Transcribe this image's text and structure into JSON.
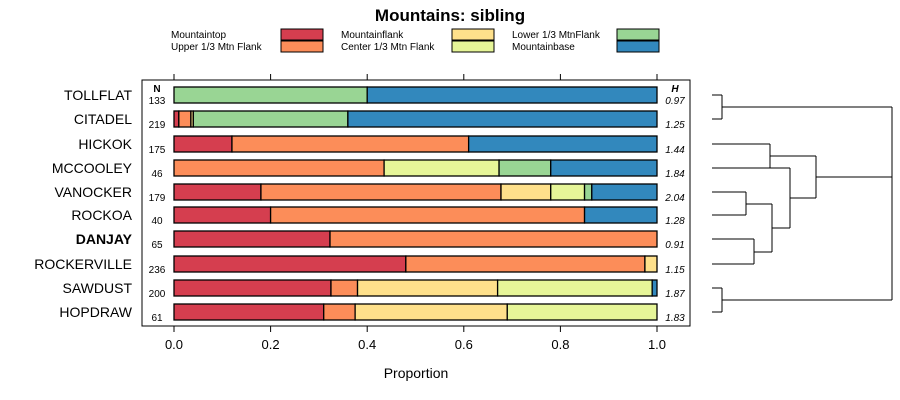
{
  "chart_data": {
    "type": "bar",
    "orientation": "horizontal",
    "stacked": true,
    "title": "Mountains: sibling",
    "xlabel": "Proportion",
    "ylabel": "",
    "xlim": [
      0,
      1
    ],
    "xticks": [
      "0.0",
      "0.2",
      "0.4",
      "0.6",
      "0.8",
      "1.0"
    ],
    "n_header": "N",
    "h_header": "H",
    "legend": [
      {
        "name": "Mountaintop",
        "color": "#d53e4f"
      },
      {
        "name": "Upper 1/3 Mtn Flank",
        "color": "#fc8d59"
      },
      {
        "name": "Mountainflank",
        "color": "#fee08b"
      },
      {
        "name": "Center 1/3 Mtn Flank",
        "color": "#e6f598"
      },
      {
        "name": "Lower 1/3 MtnFlank",
        "color": "#99d594"
      },
      {
        "name": "Mountainbase",
        "color": "#3288bd"
      }
    ],
    "categories": [
      "TOLLFLAT",
      "CITADEL",
      "HICKOK",
      "MCCOOLEY",
      "VANOCKER",
      "ROCKOA",
      "DANJAY",
      "ROCKERVILLE",
      "SAWDUST",
      "HOPDRAW"
    ],
    "highlighted": "DANJAY",
    "n": [
      "133",
      "219",
      "175",
      "46",
      "179",
      "40",
      "65",
      "236",
      "200",
      "61"
    ],
    "h": [
      "0.97",
      "1.25",
      "1.44",
      "1.84",
      "2.04",
      "1.28",
      "0.91",
      "1.15",
      "1.87",
      "1.83"
    ],
    "series": [
      {
        "name": "Mountaintop",
        "values": [
          0.0,
          0.01,
          0.12,
          0.0,
          0.18,
          0.2,
          0.323,
          0.48,
          0.325,
          0.31
        ]
      },
      {
        "name": "Upper 1/3 Mtn Flank",
        "values": [
          0.0,
          0.025,
          0.49,
          0.435,
          0.497,
          0.65,
          0.677,
          0.495,
          0.055,
          0.065
        ]
      },
      {
        "name": "Mountainflank",
        "values": [
          0.0,
          0.005,
          0.0,
          0.0,
          0.103,
          0.0,
          0.0,
          0.025,
          0.29,
          0.315
        ]
      },
      {
        "name": "Center 1/3 Mtn Flank",
        "values": [
          0.0,
          0.0,
          0.0,
          0.238,
          0.07,
          0.0,
          0.0,
          0.0,
          0.32,
          0.31
        ]
      },
      {
        "name": "Lower 1/3 MtnFlank",
        "values": [
          0.4,
          0.32,
          0.0,
          0.107,
          0.015,
          0.0,
          0.0,
          0.0,
          0.0,
          0.0
        ]
      },
      {
        "name": "Mountainbase",
        "values": [
          0.6,
          0.64,
          0.39,
          0.22,
          0.135,
          0.15,
          0.0,
          0.0,
          0.01,
          0.0
        ]
      }
    ]
  }
}
